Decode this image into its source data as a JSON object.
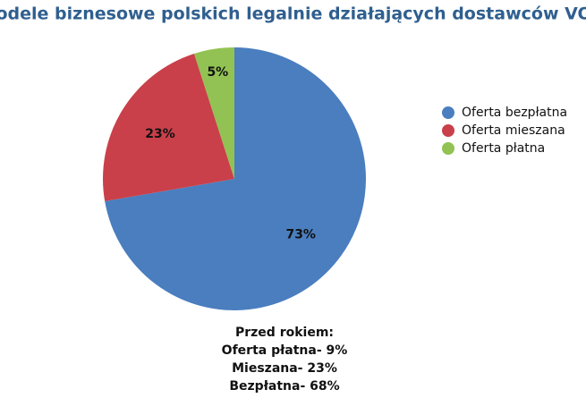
{
  "chart_data": {
    "type": "pie",
    "title": "Modele biznesowe polskich legalnie działających dostawców VOD",
    "categories": [
      "Oferta bezpłatna",
      "Oferta mieszana",
      "Oferta płatna"
    ],
    "values": [
      73,
      23,
      5
    ],
    "value_labels": [
      "73%",
      "23%",
      "5%"
    ],
    "colors": [
      "#4a7ebf",
      "#c9404a",
      "#92c253"
    ],
    "legend": "right",
    "annotations": [
      "Przed rokiem:",
      "Oferta płatna- 9%",
      "Mieszana- 23%",
      "Bezpłatna- 68%"
    ]
  }
}
